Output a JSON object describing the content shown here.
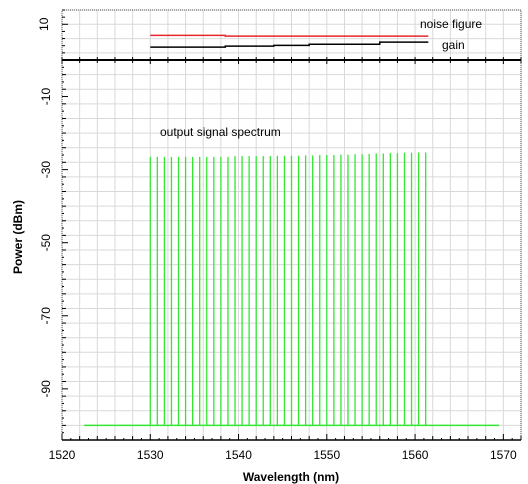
{
  "chart_data": [
    {
      "type": "line",
      "panel": "top",
      "ytick_labels": [
        "10"
      ],
      "ylim": [
        0,
        14
      ],
      "xlim": [
        1520,
        1572
      ],
      "grid": true,
      "annotations": [
        "noise figure",
        "gain"
      ],
      "series": [
        {
          "name": "noise figure",
          "color": "#e8262b",
          "x": [
            1530,
            1538.5,
            1538.5,
            1561.5
          ],
          "y": [
            6.9,
            6.9,
            6.7,
            6.7
          ]
        },
        {
          "name": "gain",
          "color": "#000000",
          "x": [
            1530,
            1538.5,
            1538.5,
            1544,
            1544,
            1548,
            1548,
            1556,
            1556,
            1561.5
          ],
          "y": [
            3.6,
            3.6,
            3.9,
            3.9,
            4.1,
            4.1,
            4.4,
            4.4,
            5.0,
            5.0
          ]
        }
      ]
    },
    {
      "type": "line",
      "panel": "bottom",
      "xlabel": "Wavelength (nm)",
      "ylabel": "Power (dBm)",
      "xtick_labels": [
        "1520",
        "1530",
        "1540",
        "1550",
        "1560",
        "1570"
      ],
      "ytick_labels": [
        "-10",
        "-30",
        "-50",
        "-70",
        "-90"
      ],
      "xlim": [
        1520,
        1572
      ],
      "ylim": [
        -104,
        0
      ],
      "grid": true,
      "annotation": "output signal spectrum",
      "series": [
        {
          "name": "output signal spectrum",
          "color": "#33e633",
          "noise_floor": {
            "x": [
              1522.5,
              1569.5
            ],
            "y": -100
          },
          "peak_wavelengths": [
            1530,
            1530.8,
            1531.6,
            1532.4,
            1533.2,
            1534,
            1534.8,
            1535.6,
            1536.4,
            1537.2,
            1538,
            1538.8,
            1539.6,
            1540.4,
            1541.2,
            1542,
            1542.8,
            1543.6,
            1544.4,
            1545.2,
            1546,
            1546.8,
            1547.6,
            1548.4,
            1549.2,
            1550,
            1550.8,
            1551.6,
            1552.4,
            1553.2,
            1554,
            1554.8,
            1555.6,
            1556.4,
            1557.2,
            1558,
            1558.8,
            1559.6,
            1560.4,
            1561.2
          ],
          "peak_powers": [
            -26.5,
            -26.5,
            -26.5,
            -26.5,
            -26.5,
            -26.5,
            -26.5,
            -26.5,
            -26.5,
            -26.5,
            -26.5,
            -26.5,
            -26.3,
            -26.3,
            -26.3,
            -26.3,
            -26.3,
            -26.3,
            -26.2,
            -26.2,
            -26.2,
            -26.2,
            -26.1,
            -26.1,
            -26.0,
            -26.0,
            -26.0,
            -25.9,
            -25.9,
            -25.8,
            -25.8,
            -25.7,
            -25.6,
            -25.6,
            -25.5,
            -25.5,
            -25.4,
            -25.4,
            -25.3,
            -25.3
          ]
        }
      ]
    }
  ]
}
